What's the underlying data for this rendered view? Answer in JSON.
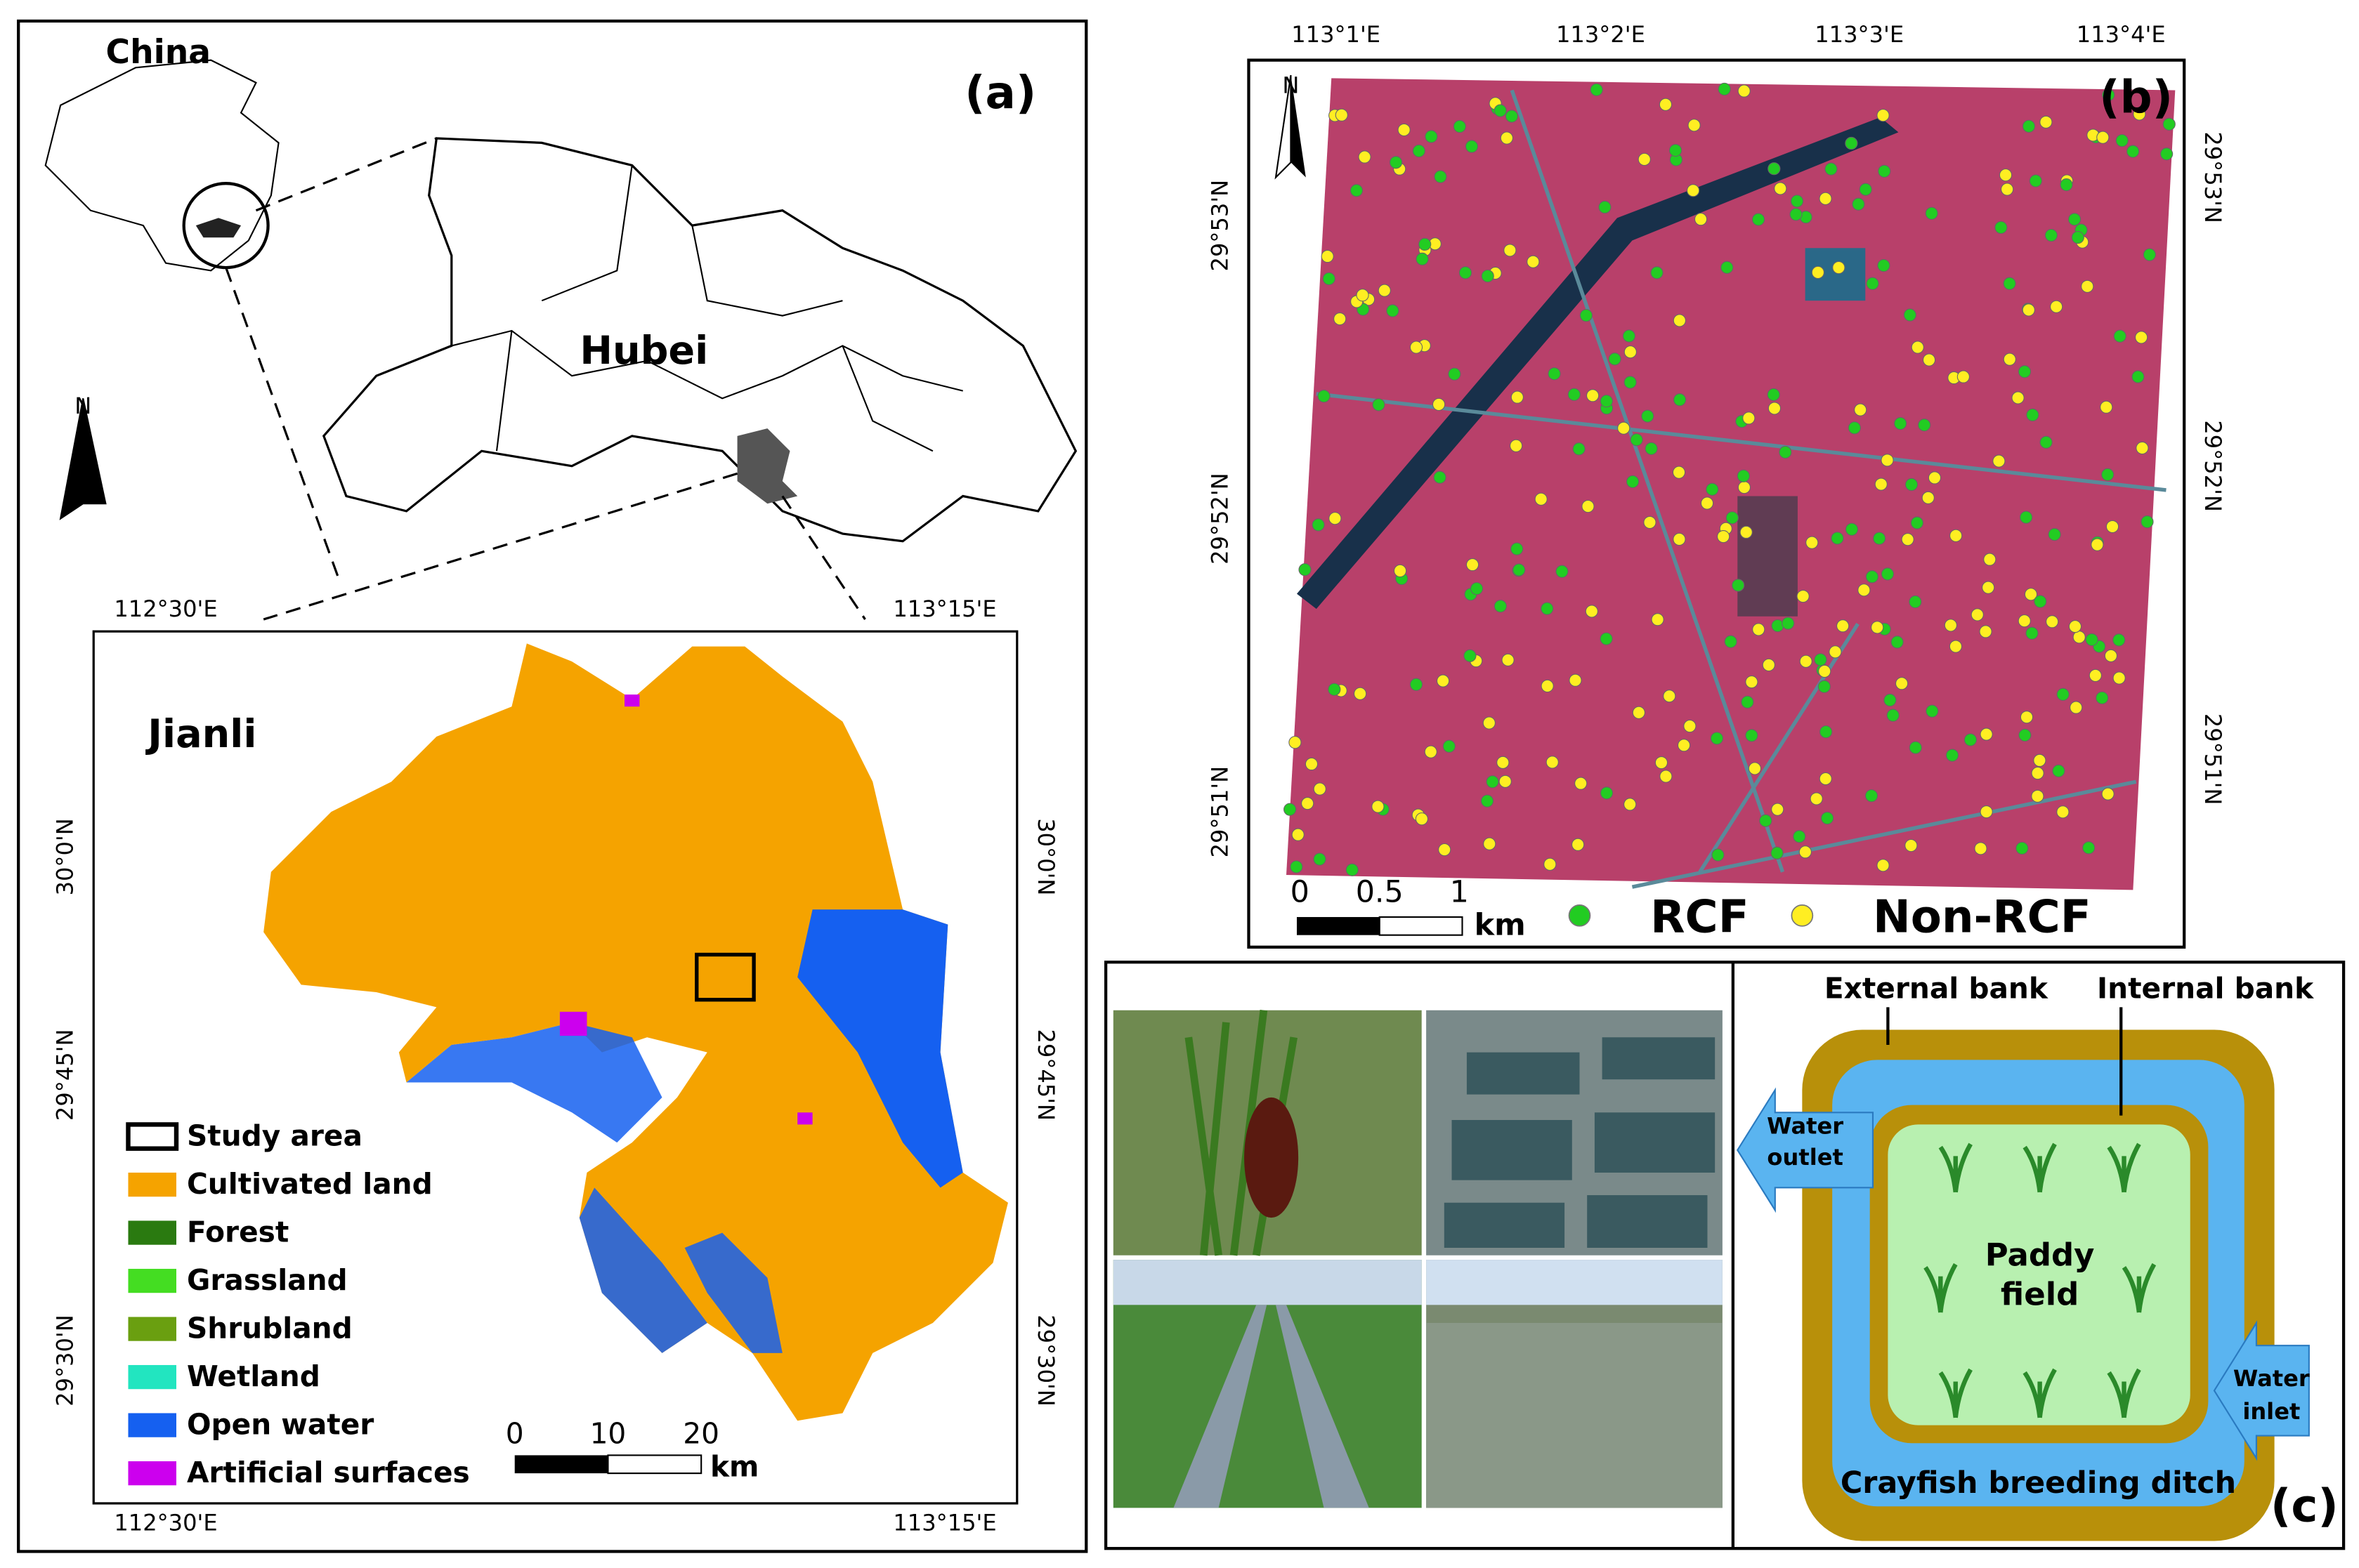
{
  "panel_a": {
    "label": "(a)",
    "china": "China",
    "hubei": "Hubei",
    "jianli": "Jianli",
    "north": "N",
    "top_ticks": [
      "112°30'E",
      "113°15'E"
    ],
    "bottom_ticks": [
      "112°30'E",
      "113°15'E"
    ],
    "left_ticks": [
      "30°0'N",
      "29°45'N",
      "29°30'N"
    ],
    "right_ticks": [
      "30°0'N",
      "29°45'N",
      "29°30'N"
    ],
    "legend": [
      {
        "label": "Study area",
        "color": "#ffffff"
      },
      {
        "label": "Cultivated land",
        "color": "#f5a300"
      },
      {
        "label": "Forest",
        "color": "#2a7a10"
      },
      {
        "label": "Grassland",
        "color": "#44dd22"
      },
      {
        "label": "Shrubland",
        "color": "#6a9f10"
      },
      {
        "label": "Wetland",
        "color": "#22e5c0"
      },
      {
        "label": "Open water",
        "color": "#1560f0"
      },
      {
        "label": "Artificial surfaces",
        "color": "#cc00ee"
      }
    ],
    "scale": [
      "0",
      "10",
      "20"
    ],
    "unit": "km"
  },
  "panel_b": {
    "label": "(b)",
    "north": "N",
    "top_ticks": [
      "113°1'E",
      "113°2'E",
      "113°3'E",
      "113°4'E"
    ],
    "left_ticks": [
      "29°53'N",
      "29°52'N",
      "29°51'N"
    ],
    "right_ticks": [
      "29°53'N",
      "29°52'N",
      "29°51'N"
    ],
    "scale": [
      "0",
      "0.5",
      "1"
    ],
    "unit": "km",
    "legend": [
      {
        "label": "RCF",
        "color": "#22cc22"
      },
      {
        "label": "Non-RCF",
        "color": "#ffee22"
      }
    ]
  },
  "panel_c": {
    "label": "(c)",
    "external_bank": "External bank",
    "internal_bank": "Internal bank",
    "water_outlet": [
      "Water",
      "outlet"
    ],
    "water_inlet": [
      "Water",
      "inlet"
    ],
    "paddy_field": [
      "Paddy",
      "field"
    ],
    "ditch": "Crayfish breeding ditch"
  }
}
